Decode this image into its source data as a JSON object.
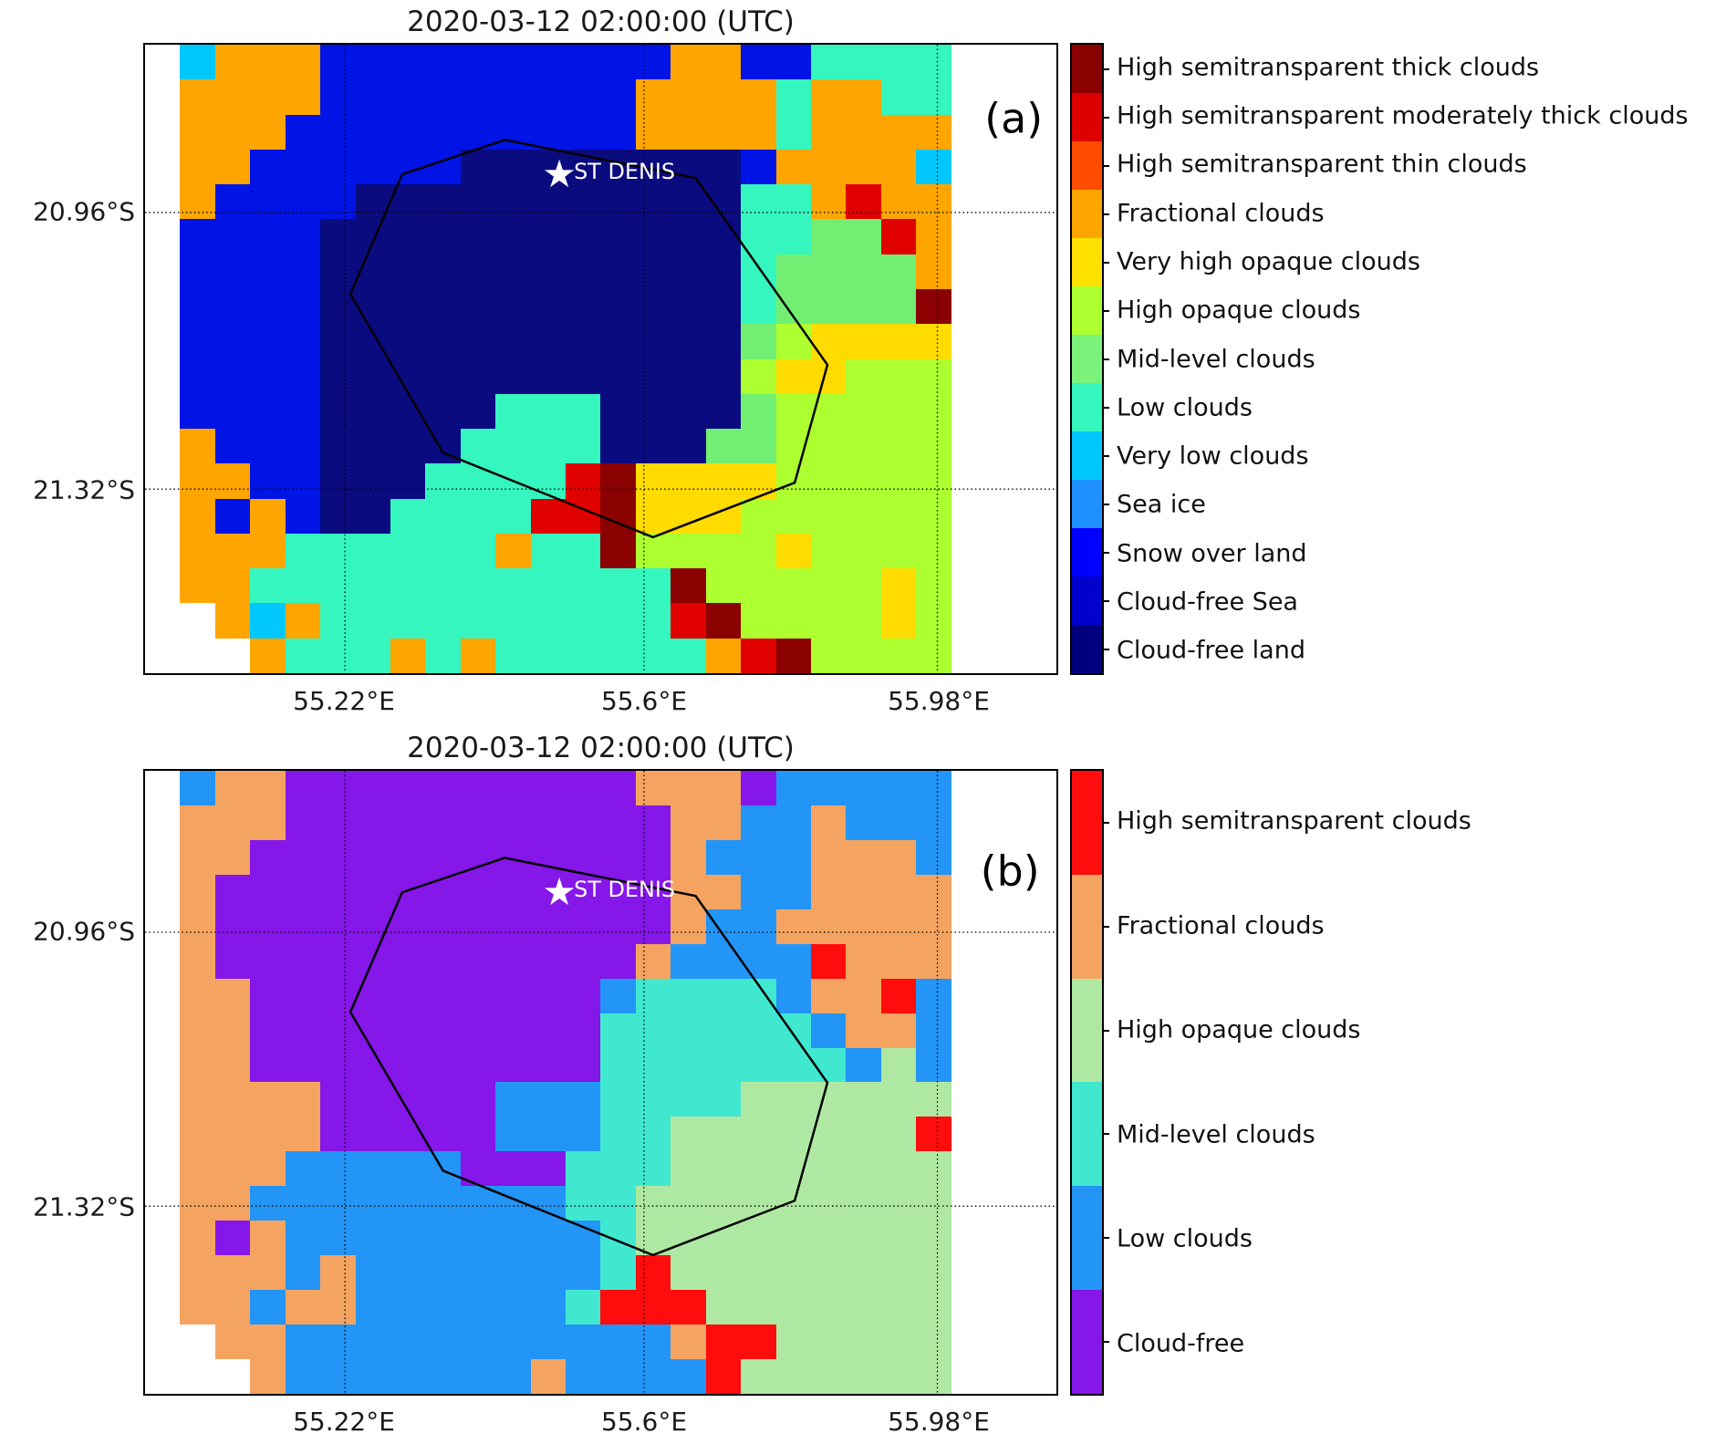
{
  "chart_data": [
    {
      "type": "heatmap",
      "panel_label": "(a)",
      "title": "2020-03-12 02:00:00 (UTC)",
      "station": "ST DENIS",
      "station_marker": "★",
      "x_ticks": [
        "55.22°E",
        "55.6°E",
        "55.98°E"
      ],
      "y_ticks": [
        "20.96°S",
        "21.32°S"
      ],
      "legend": [
        {
          "label": "High semitransparent thick clouds",
          "color": "#8B0000"
        },
        {
          "label": "High semitransparent moderately thick clouds",
          "color": "#DE0000"
        },
        {
          "label": "High semitransparent thin clouds",
          "color": "#FF4B00"
        },
        {
          "label": "Fractional clouds",
          "color": "#FFA500"
        },
        {
          "label": "Very high opaque clouds",
          "color": "#FFE100"
        },
        {
          "label": "High opaque clouds",
          "color": "#ADFF2F"
        },
        {
          "label": "Mid-level clouds",
          "color": "#7BF37B"
        },
        {
          "label": "Low clouds",
          "color": "#34F6BE"
        },
        {
          "label": "Very low clouds",
          "color": "#00C8FF"
        },
        {
          "label": "Sea ice",
          "color": "#1E90FF"
        },
        {
          "label": "Snow over land",
          "color": "#0000FF"
        },
        {
          "label": "Cloud-free Sea",
          "color": "#0000CD"
        },
        {
          "label": "Cloud-free land",
          "color": "#00007E"
        }
      ],
      "palette": {
        "W": "#FFFFFF",
        "C": "#00C8FF",
        "F": "#FFA500",
        "S": "#0014E6",
        "N": "#0B0B80",
        "T": "#34F6BE",
        "M": "#72EF72",
        "G": "#ADFF2F",
        "Y": "#FFDB00",
        "R": "#E10000",
        "K": "#8B0000",
        "D": "#1E90FF"
      },
      "grid_rows": [
        "WCFFFSSSSSSSSSSFFSSTTTTWWW",
        "WFFFFSSSSSSSSSFFFFTFFTTWWW",
        "WFFFSSSSSSSSSSFFFFTFFFFWWW",
        "WFFSSSSSSNNNNNNNNSFFFFCWWW",
        "WFSSSSNNNNNNNNNNNTTFRFFWWW",
        "WSSSSNNNNNNNNNNNNTTMMRFWWW",
        "WSSSSNNNNNNNNNNNNTMMMMFWWW",
        "WSSSSNNNNNNNNNNNNTMMMMKWWW",
        "WSSSSNNNNNNNNNNNNMGYYYYWWW",
        "WSSSSNNNNNNNNNNNNGYYGGGWWW",
        "WSSSSNNNNNTTTNNNNMGGGGGWWW",
        "WFSSSNNNNTTTTNNNMMGGGGGWWW",
        "WFFSSNNNTTTTRKYYYYGGGGGWWW",
        "WFSFSNNTTTTRRKYYYGGGGGGWWW",
        "WFFFTTTTTTFTTKGGGGYGGGGWWW",
        "WFFTTTTTTTTTTTTKGGGGGYGWWW",
        "WWFCFTTTTTTTTTTRKGGGGYGWWW",
        "WWWFTTTFTFTTTTTTFRKGGGGWWW"
      ]
    },
    {
      "type": "heatmap",
      "panel_label": "(b)",
      "title": "2020-03-12 02:00:00 (UTC)",
      "station": "ST DENIS",
      "station_marker": "★",
      "x_ticks": [
        "55.22°E",
        "55.6°E",
        "55.98°E"
      ],
      "y_ticks": [
        "20.96°S",
        "21.32°S"
      ],
      "legend": [
        {
          "label": "High semitransparent clouds",
          "color": "#FF0C0C"
        },
        {
          "label": "Fractional clouds",
          "color": "#F4A460"
        },
        {
          "label": "High opaque clouds",
          "color": "#AFE8A2"
        },
        {
          "label": "Mid-level clouds",
          "color": "#40E8D0"
        },
        {
          "label": "Low clouds",
          "color": "#2395F6"
        },
        {
          "label": "Cloud-free",
          "color": "#8517E8"
        }
      ],
      "palette": {
        "W": "#FFFFFF",
        "A": "#F4A460",
        "P": "#8517E8",
        "L": "#2395F6",
        "Q": "#40E8D0",
        "H": "#AFE8A2",
        "R": "#FF0C0C"
      },
      "grid_rows": [
        "WLAAPPPPPPPPPPAAAPLLLLLWWW",
        "WAAAPPPPPPPPPPPAALLALLLWWW",
        "WAAPPPPPPPPPPPPALLLAAALWWW",
        "WAPPPPPPPPPPPPPAALLAAAAWWW",
        "WAPPPPPPPPPPPPPALLAAAAAWWW",
        "WAPPPPPPPPPPPPALLLLRAAAWWW",
        "WAAPPPPPPPPPPLQQQQLAARLWWW",
        "WAAPPPPPPPPPPQQQQQQLAALWWW",
        "WAAPPPPPPPPPPQQQQQQQLHLWWW",
        "WAAAAPPPPPLLLQQQQHHHHHHWWW",
        "WAAAAPPPPPLLLQQHHHHHHHRWWW",
        "WAAALLLLLPPPQQQHHHHHHHHWWW",
        "WAALLLLLLLLLQQHHHHHHHHHWWW",
        "WAPALLLLLLLLLQHHHHHHHHHWWW",
        "WAAALALLLLLLLQRHHHHHHHHWWW",
        "WAALAALLLLLLQRRRHHHHHHHWWW",
        "WWAALLLLLLLLLLLARRHHHHHWWW",
        "WWWALLLLLLLALLLLRHHHHHHWWW"
      ]
    }
  ]
}
